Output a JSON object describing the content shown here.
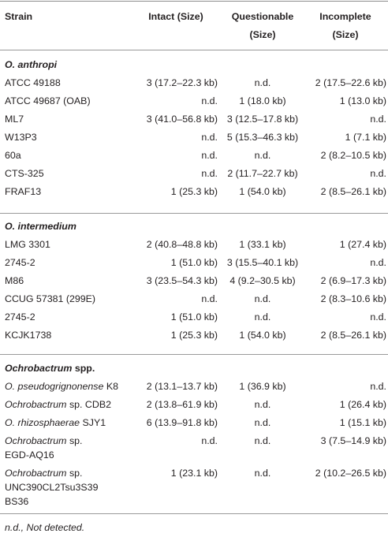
{
  "headers": {
    "strain": "Strain",
    "intact_1": "Intact (Size)",
    "questionable_1": "Questionable",
    "questionable_2": "(Size)",
    "incomplete_1": "Incomplete",
    "incomplete_2": "(Size)"
  },
  "groups": [
    {
      "name_italic": "O. anthropi",
      "name_rest": "",
      "rows": [
        {
          "strain_italic": "",
          "strain": "ATCC 49188",
          "intact": "3 (17.2–22.3 kb)",
          "questionable": "n.d.",
          "incomplete": "2 (17.5–22.6 kb)"
        },
        {
          "strain_italic": "",
          "strain": "ATCC 49687 (OAB)",
          "intact": "n.d.",
          "questionable": "1 (18.0 kb)",
          "incomplete": "1 (13.0 kb)"
        },
        {
          "strain_italic": "",
          "strain": "ML7",
          "intact": "3 (41.0–56.8 kb)",
          "questionable": "3 (12.5–17.8 kb)",
          "incomplete": "n.d."
        },
        {
          "strain_italic": "",
          "strain": "W13P3",
          "intact": "n.d.",
          "questionable": "5 (15.3–46.3 kb)",
          "incomplete": "1 (7.1 kb)"
        },
        {
          "strain_italic": "",
          "strain": "60a",
          "intact": "n.d.",
          "questionable": "n.d.",
          "incomplete": "2 (8.2–10.5 kb)"
        },
        {
          "strain_italic": "",
          "strain": "CTS-325",
          "intact": "n.d.",
          "questionable": "2 (11.7–22.7 kb)",
          "incomplete": "n.d."
        },
        {
          "strain_italic": "",
          "strain": "FRAF13",
          "intact": "1 (25.3 kb)",
          "questionable": "1 (54.0 kb)",
          "incomplete": "2 (8.5–26.1 kb)"
        }
      ]
    },
    {
      "name_italic": "O. intermedium",
      "name_rest": "",
      "rows": [
        {
          "strain_italic": "",
          "strain": "LMG 3301",
          "intact": "2 (40.8–48.8 kb)",
          "questionable": "1 (33.1 kb)",
          "incomplete": "1 (27.4 kb)"
        },
        {
          "strain_italic": "",
          "strain": "2745-2",
          "intact": "1 (51.0 kb)",
          "questionable": "3 (15.5–40.1 kb)",
          "incomplete": "n.d."
        },
        {
          "strain_italic": "",
          "strain": "M86",
          "intact": "3 (23.5–54.3 kb)",
          "questionable": "4 (9.2–30.5 kb)",
          "incomplete": "2 (6.9–17.3 kb)"
        },
        {
          "strain_italic": "",
          "strain": "CCUG 57381 (299E)",
          "intact": "n.d.",
          "questionable": "n.d.",
          "incomplete": "2 (8.3–10.6 kb)"
        },
        {
          "strain_italic": "",
          "strain": "2745-2",
          "intact": "1 (51.0 kb)",
          "questionable": "n.d.",
          "incomplete": "n.d."
        },
        {
          "strain_italic": "",
          "strain": "KCJK1738",
          "intact": "1 (25.3 kb)",
          "questionable": "1 (54.0 kb)",
          "incomplete": "2 (8.5–26.1 kb)"
        }
      ]
    },
    {
      "name_italic": "Ochrobactrum",
      "name_rest": " spp.",
      "rows": [
        {
          "strain_italic": "O. pseudogrignonense",
          "strain": " K8",
          "intact": "2 (13.1–13.7 kb)",
          "questionable": "1 (36.9 kb)",
          "incomplete": "n.d."
        },
        {
          "strain_italic": "Ochrobactrum",
          "strain": " sp. CDB2",
          "intact": "2 (13.8–61.9 kb)",
          "questionable": "n.d.",
          "incomplete": "1 (26.4 kb)"
        },
        {
          "strain_italic": "O. rhizosphaerae",
          "strain": " SJY1",
          "intact": "6 (13.9–91.8 kb)",
          "questionable": "n.d.",
          "incomplete": "1 (15.1 kb)"
        },
        {
          "strain_italic": "Ochrobactrum",
          "strain": " sp.",
          "strain_line2": "EGD-AQ16",
          "intact": "n.d.",
          "questionable": "n.d.",
          "incomplete": "3 (7.5–14.9 kb)"
        },
        {
          "strain_italic": "Ochrobactrum",
          "strain": " sp.",
          "strain_line2": "UNC390CL2Tsu3S39",
          "strain_line3": "BS36",
          "intact": "1 (23.1 kb)",
          "questionable": "n.d.",
          "incomplete": "2 (10.2–26.5 kb)"
        }
      ]
    }
  ],
  "footnote": "n.d., Not detected."
}
